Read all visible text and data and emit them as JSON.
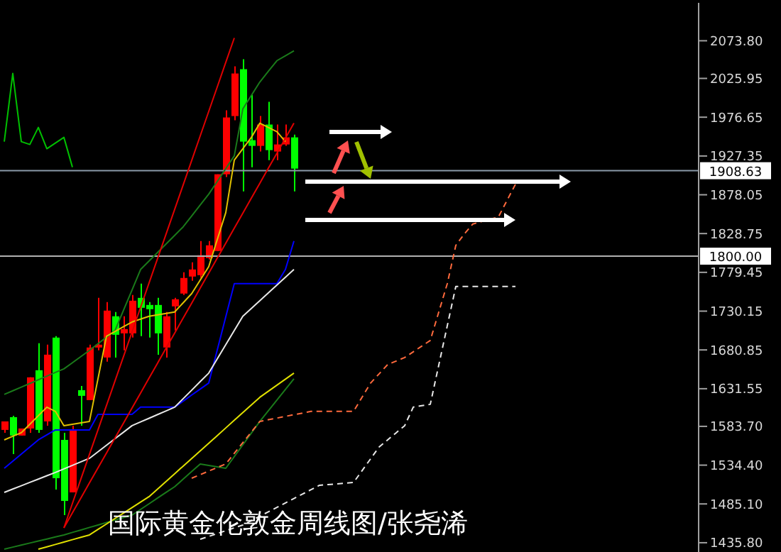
{
  "chart_data": {
    "type": "candlestick",
    "categories": [
      null,
      null,
      null,
      null,
      null,
      null,
      null,
      null,
      null,
      null,
      null,
      null,
      null,
      null,
      null,
      null,
      null,
      null,
      null,
      null,
      null,
      null,
      null,
      null,
      null,
      null,
      null,
      null,
      null,
      null,
      null,
      null,
      null,
      null,
      null,
      null,
      null,
      null,
      null,
      null,
      null,
      null,
      null,
      null,
      null,
      null,
      null,
      null,
      null,
      null,
      null,
      null,
      null,
      null,
      null,
      null,
      null,
      null,
      null,
      null,
      null,
      null,
      null,
      null,
      null,
      null,
      null,
      null,
      null,
      null,
      null,
      null,
      null,
      null,
      null,
      null,
      null,
      null,
      null,
      null,
      null,
      null
    ],
    "ohlc": [
      [
        1579.2,
        1590.0,
        1575.6,
        1590.0
      ],
      [
        1595.4,
        1597.2,
        1548.5,
        1572.0
      ],
      [
        1572.0,
        1581.0,
        1572.0,
        1581.0
      ],
      [
        1581.0,
        1646.0,
        1575.6,
        1646.0
      ],
      [
        1655.0,
        1689.3,
        1575.6,
        1579.2
      ],
      [
        1590.0,
        1687.5,
        1584.6,
        1674.8
      ],
      [
        1696.5,
        1698.3,
        1503.4,
        1517.8
      ],
      [
        1566.5,
        1575.6,
        1470.9,
        1488.9
      ],
      [
        1499.8,
        1584.6,
        1499.8,
        1579.2
      ],
      [
        1629.7,
        1635.1,
        1584.6,
        1622.5
      ],
      [
        1617.1,
        1687.5,
        1617.1,
        1683.9
      ],
      [
        1683.9,
        1747.0,
        1680.3,
        1687.5
      ],
      [
        1671.2,
        1741.6,
        1665.8,
        1730.8
      ],
      [
        1723.6,
        1729.0,
        1671.2,
        1700.1
      ],
      [
        1701.9,
        1723.6,
        1680.3,
        1707.3
      ],
      [
        1701.9,
        1750.7,
        1696.5,
        1743.4
      ],
      [
        1747.0,
        1765.1,
        1698.3,
        1734.4
      ],
      [
        1738.0,
        1741.6,
        1696.5,
        1732.6
      ],
      [
        1738.0,
        1747.0,
        1674.8,
        1701.9
      ],
      [
        1683.9,
        1729.0,
        1671.2,
        1723.6
      ],
      [
        1736.2,
        1747.0,
        1705.5,
        1745.2
      ],
      [
        1752.5,
        1779.5,
        1750.7,
        1772.3
      ],
      [
        1774.1,
        1792.2,
        1768.7,
        1783.1
      ],
      [
        1775.9,
        1819.2,
        1772.3,
        1801.2
      ],
      [
        1797.6,
        1819.2,
        1795.8,
        1813.8
      ],
      [
        1806.6,
        1904.1,
        1806.6,
        1904.1
      ],
      [
        1904.1,
        1985.3,
        1900.5,
        1976.3
      ],
      [
        1978.1,
        2041.3,
        1972.7,
        2032.2
      ],
      [
        2037.7,
        2050.3,
        1882.4,
        1945.6
      ],
      [
        1947.4,
        2005.2,
        1913.1,
        1940.2
      ],
      [
        1940.2,
        1978.1,
        1933.0,
        1967.3
      ],
      [
        1967.3,
        1996.1,
        1922.1,
        1934.8
      ],
      [
        1933.0,
        1967.3,
        1922.1,
        1942.0
      ],
      [
        1942.0,
        1967.3,
        1940.2,
        1951.0
      ],
      [
        1951.0,
        1954.6,
        1882.4,
        1911.3
      ],
      null,
      null,
      null,
      null,
      null,
      null,
      null,
      null,
      null,
      null,
      null,
      null,
      null,
      null,
      null,
      null,
      null,
      null,
      null,
      null,
      null,
      null,
      null,
      null,
      null,
      null,
      null,
      null,
      null,
      null,
      null,
      null,
      null,
      null,
      null,
      null,
      null,
      null,
      null,
      null,
      null,
      null,
      null,
      null,
      null,
      null,
      null
    ],
    "colors": [
      "#ff0000",
      "#00ff00",
      "#ff0000",
      "#ff0000",
      "#00ff00",
      "#ff0000",
      "#00ff00",
      "#00ff00",
      "#ff0000",
      "#00ff00",
      "#ff0000",
      "#ff0000",
      "#ff0000",
      "#00ff00",
      "#ff0000",
      "#ff0000",
      "#00ff00",
      "#00ff00",
      "#00ff00",
      "#ff0000",
      "#ff0000",
      "#ff0000",
      "#ff0000",
      "#ff0000",
      "#ff0000",
      "#ff0000",
      "#ff0000",
      "#ff0000",
      "#00ff00",
      "#00ff00",
      "#ff0000",
      "#00ff00",
      "#ff0000",
      "#ff0000",
      "#00ff00",
      null,
      null,
      null,
      null,
      null,
      null,
      null,
      null,
      null,
      null,
      null,
      null,
      null,
      null,
      null,
      null,
      null,
      null,
      null,
      null,
      null,
      null,
      null,
      null,
      null,
      null,
      null,
      null,
      null,
      null,
      null,
      null,
      null,
      null,
      null,
      null,
      null,
      null,
      null,
      null,
      null,
      null,
      null,
      null,
      null,
      null,
      null
    ],
    "series": [
      {
        "type": "line",
        "color": "#1a7a1a",
        "values": [
          1624.3,
          1628.9,
          1633.6,
          1638.2,
          1642.9,
          1647.5,
          1652.2,
          1656.8,
          1664.6,
          1672.5,
          1680.3,
          1688.7,
          1697.1,
          1705.5,
          1731.4,
          1757.2,
          1783.1,
          1793.9,
          1804.8,
          1815.6,
          1826.5,
          1837.3,
          1851.1,
          1865.0,
          1878.8,
          1895.0,
          1911.3,
          1927.5,
          1987.1,
          2004.3,
          2021.4,
          2035.0,
          2048.5,
          2054.8,
          2061.1,
          null,
          null,
          null,
          null,
          null,
          null,
          null,
          null,
          null,
          null,
          null,
          null,
          null,
          null,
          null,
          null,
          null,
          null,
          null,
          null,
          null,
          null,
          null,
          null,
          null,
          null,
          null,
          null,
          null,
          null,
          null,
          null,
          null,
          null,
          null,
          null,
          null,
          null,
          null,
          null,
          null,
          null,
          null,
          null,
          null,
          null,
          null
        ]
      },
      {
        "type": "line",
        "color": "#1a7a1a",
        "values": [
          1427.6,
          1430.2,
          1432.8,
          1435.4,
          1437.9,
          1440.5,
          1443.1,
          1445.7,
          1448.9,
          1452.0,
          1455.2,
          1458.3,
          1461.5,
          1464.6,
          1467.8,
          1470.9,
          1478.1,
          1485.3,
          1492.6,
          1499.8,
          1507.0,
          1516.6,
          1526.3,
          1535.9,
          1534.1,
          1532.2,
          1530.4,
          1545.3,
          1560.2,
          1575.1,
          1590.0,
          1603.6,
          1617.1,
          1630.7,
          1644.2,
          null,
          null,
          null,
          null,
          null,
          null,
          null,
          null,
          null,
          null,
          null,
          null,
          null,
          null,
          null,
          null,
          null,
          null,
          null,
          null,
          null,
          null,
          null,
          null,
          null,
          null,
          null,
          null,
          null,
          null,
          null,
          null,
          null,
          null,
          null,
          null,
          null,
          null,
          null,
          null,
          null,
          null,
          null,
          null,
          null,
          null,
          null
        ]
      },
      {
        "type": "line",
        "color": "#e0c000",
        "values": [
          1566.5,
          1571.1,
          1575.6,
          1586.4,
          1597.3,
          1608.1,
          1602.7,
          1584.6,
          1586.4,
          1588.2,
          1590.0,
          1644.2,
          1698.3,
          1704.3,
          1710.4,
          1716.4,
          1720.0,
          1723.6,
          1725.4,
          1727.2,
          1729.0,
          1740.8,
          1752.5,
          1769.7,
          1786.8,
          1821.1,
          1855.4,
          1922.1,
          1936.6,
          1951.0,
          1969.1,
          1963.7,
          1958.2,
          1945.6,
          null,
          null,
          null,
          null,
          null,
          null,
          null,
          null,
          null,
          null,
          null,
          null,
          null,
          null,
          null,
          null,
          null,
          null,
          null,
          null,
          null,
          null,
          null,
          null,
          null,
          null,
          null,
          null,
          null,
          null,
          null,
          null,
          null,
          null,
          null,
          null,
          null,
          null,
          null,
          null,
          null,
          null,
          null,
          null,
          null,
          null,
          null,
          null
        ]
      },
      {
        "type": "line",
        "color": "#0000ff",
        "values": [
          1530.4,
          1539.4,
          1548.5,
          1557.5,
          1566.5,
          1572.9,
          1579.2,
          1579.2,
          1579.2,
          1579.2,
          1579.2,
          1599.0,
          1599.0,
          1599.0,
          1599.0,
          1599.0,
          1608.1,
          1608.1,
          1608.1,
          1608.1,
          1608.1,
          1615.8,
          1623.5,
          1631.1,
          1638.8,
          1680.9,
          1723.0,
          1765.1,
          1765.1,
          1765.1,
          1765.1,
          1765.1,
          1765.1,
          1783.1,
          1819.2,
          null,
          null,
          null,
          null,
          null,
          null,
          null,
          null,
          null,
          null,
          null,
          null,
          null,
          null,
          null,
          null,
          null,
          null,
          null,
          null,
          null,
          null,
          null,
          null,
          null,
          null,
          null,
          null,
          null,
          null,
          null,
          null,
          null,
          null,
          null,
          null,
          null,
          null,
          null,
          null,
          null,
          null,
          null,
          null,
          null,
          null,
          null
        ]
      },
      {
        "type": "line",
        "color": "#e8e8e8",
        "values": [
          1499.8,
          1504.0,
          1508.2,
          1512.5,
          1516.7,
          1520.9,
          1525.1,
          1529.6,
          1534.1,
          1538.6,
          1543.1,
          1551.4,
          1559.7,
          1568.0,
          1576.3,
          1584.6,
          1589.3,
          1594.0,
          1598.7,
          1603.4,
          1608.1,
          1618.9,
          1629.7,
          1640.6,
          1651.4,
          1669.5,
          1687.5,
          1705.6,
          1723.6,
          1733.5,
          1743.4,
          1753.4,
          1763.3,
          1773.2,
          1783.1,
          null,
          null,
          null,
          null,
          null,
          null,
          null,
          null,
          null,
          null,
          null,
          null,
          null,
          null,
          null,
          null,
          null,
          null,
          null,
          null,
          null,
          null,
          null,
          null,
          null,
          null,
          null,
          null,
          null,
          null,
          null,
          null,
          null,
          null,
          null,
          null,
          null,
          null,
          null,
          null,
          null,
          null,
          null,
          null,
          null,
          null,
          null
        ]
      },
      {
        "type": "line",
        "color": "#e0e000",
        "values": [
          null,
          null,
          null,
          null,
          1427.6,
          1430.6,
          1433.6,
          1436.7,
          1439.7,
          1442.7,
          1445.7,
          1452.7,
          1459.6,
          1466.6,
          1473.5,
          1480.5,
          1487.4,
          1494.4,
          1504.1,
          1513.8,
          1523.5,
          1533.2,
          1542.9,
          1552.6,
          1562.3,
          1572.0,
          1581.7,
          1591.5,
          1601.2,
          1611.0,
          1620.7,
          1628.4,
          1636.0,
          1643.7,
          1651.4,
          null,
          null,
          null,
          null,
          null,
          null,
          null,
          null,
          null,
          null,
          null,
          null,
          null,
          null,
          null,
          null,
          null,
          null,
          null,
          null,
          null,
          null,
          null,
          null,
          null,
          null,
          null,
          null,
          null,
          null,
          null,
          null,
          null,
          null,
          null,
          null,
          null,
          null,
          null,
          null,
          null,
          null,
          null,
          null,
          null,
          null,
          null
        ]
      },
      {
        "type": "line",
        "color": "#e00000",
        "values": [
          null,
          null,
          null,
          null,
          null,
          null,
          null,
          1454.7,
          1485.8,
          1517.0,
          1548.1,
          1579.2,
          1610.4,
          1641.5,
          1672.6,
          1703.8,
          1734.9,
          1766.1,
          1797.2,
          1828.3,
          1859.5,
          1890.6,
          1921.7,
          1952.9,
          1984.0,
          2015.1,
          2046.3,
          2077.4,
          null,
          null,
          null,
          null,
          null,
          null,
          null,
          null,
          null,
          null,
          null,
          null,
          null,
          null,
          null,
          null,
          null,
          null,
          null,
          null,
          null,
          null,
          null,
          null,
          null,
          null,
          null,
          null,
          null,
          null,
          null,
          null,
          null,
          null,
          null,
          null,
          null,
          null,
          null,
          null,
          null,
          null,
          null,
          null,
          null,
          null,
          null,
          null,
          null,
          null,
          null,
          null,
          null,
          null
        ]
      },
      {
        "type": "line",
        "color": "#e00000",
        "values": [
          null,
          null,
          null,
          null,
          null,
          null,
          null,
          1454.7,
          1473.8,
          1492.8,
          1511.9,
          1530.9,
          1549.9,
          1569.0,
          1588.0,
          1607.1,
          1626.1,
          1645.2,
          1664.2,
          1683.3,
          1702.3,
          1721.4,
          1740.4,
          1759.4,
          1778.5,
          1797.5,
          1816.6,
          1835.6,
          1854.7,
          1873.7,
          1892.8,
          1911.8,
          1930.9,
          1949.9,
          1969.1,
          null,
          null,
          null,
          null,
          null,
          null,
          null,
          null,
          null,
          null,
          null,
          null,
          null,
          null,
          null,
          null,
          null,
          null,
          null,
          null,
          null,
          null,
          null,
          null,
          null,
          null,
          null,
          null,
          null,
          null,
          null,
          null,
          null,
          null,
          null,
          null,
          null,
          null,
          null,
          null,
          null,
          null,
          null,
          null,
          null,
          null,
          null
        ]
      },
      {
        "type": "line",
        "color": "#00c000",
        "values": [
          1945.6,
          2032.2,
          1945.6,
          1942.0,
          1963.6,
          1936.6,
          1943.8,
          1951.0,
          1913.1,
          null,
          null,
          null,
          null,
          null,
          null,
          null,
          null,
          null,
          null,
          null,
          null,
          null,
          null,
          null,
          null,
          null,
          null,
          null,
          null,
          null,
          null,
          null,
          null,
          null,
          null,
          null,
          null,
          null,
          null,
          null,
          null,
          null,
          null,
          null,
          null,
          null,
          null,
          null,
          null,
          null,
          null,
          null,
          null,
          null,
          null,
          null,
          null,
          null,
          null,
          null,
          null,
          null,
          null,
          null,
          null,
          null,
          null,
          null,
          null,
          null,
          null,
          null,
          null,
          null,
          null,
          null,
          null,
          null,
          null,
          null,
          null,
          null
        ]
      },
      {
        "type": "line",
        "color": "#ff6a3d",
        "line_style": "dashed",
        "values": [
          null,
          null,
          null,
          null,
          null,
          null,
          null,
          null,
          null,
          null,
          null,
          null,
          null,
          null,
          null,
          null,
          null,
          null,
          null,
          null,
          null,
          null,
          1517.8,
          1522.3,
          1526.9,
          1531.4,
          1535.9,
          1549.4,
          1563.0,
          1576.5,
          1590.0,
          1592.1,
          1594.2,
          1596.4,
          1598.5,
          1600.6,
          1602.7,
          1602.7,
          1602.7,
          1602.7,
          1602.7,
          1602.7,
          1620.8,
          1638.8,
          1650.5,
          1662.2,
          1666.7,
          1671.2,
          1678.4,
          1685.7,
          1692.9,
          1729.0,
          1765.1,
          1813.8,
          1828.3,
          1840.9,
          1843.9,
          1846.9,
          1849.9,
          1870.7,
          1891.4,
          null,
          null,
          null,
          null,
          null,
          null,
          null,
          null,
          null,
          null,
          null,
          null,
          null,
          null,
          null,
          null,
          null,
          null,
          null,
          null,
          null
        ]
      },
      {
        "type": "line",
        "color": "#e8e8e8",
        "line_style": "dashed",
        "values": [
          null,
          null,
          null,
          null,
          null,
          null,
          null,
          null,
          null,
          null,
          null,
          null,
          null,
          null,
          null,
          null,
          null,
          null,
          null,
          null,
          null,
          null,
          null,
          1440.2,
          1443.8,
          1447.4,
          1451.1,
          1454.7,
          1458.3,
          1463.9,
          1469.5,
          1475.1,
          1480.7,
          1486.4,
          1492.0,
          1497.6,
          1503.2,
          1508.8,
          1509.7,
          1510.6,
          1511.5,
          1512.4,
          1527.4,
          1542.5,
          1557.5,
          1566.5,
          1575.6,
          1584.6,
          1608.1,
          1609.9,
          1611.7,
          1661.6,
          1711.6,
          1761.5,
          1761.5,
          1761.5,
          1761.5,
          1761.5,
          1761.5,
          1761.5,
          1761.5,
          null,
          null,
          null,
          null,
          null,
          null,
          null,
          null,
          null,
          null,
          null,
          null,
          null,
          null,
          null,
          null,
          null,
          null,
          null,
          null,
          null
        ]
      }
    ],
    "ref_lines": [
      {
        "axis": "y",
        "value": 1908.63,
        "label": "1908.63",
        "color": "#8a9aa8"
      },
      {
        "axis": "y",
        "value": 1800.0,
        "label": "1800.00",
        "color": "#b0b0b0"
      }
    ],
    "annotations": [
      "国际黄金伦敦金周线图/张尧浠"
    ],
    "ylim": [
      1424,
      2122
    ],
    "yticks": [
      {
        "value": 2073.8,
        "label": "2073.80"
      },
      {
        "value": 2025.95,
        "label": "2025.95"
      },
      {
        "value": 1976.65,
        "label": "1976.65"
      },
      {
        "value": 1927.35,
        "label": "1927.35"
      },
      {
        "value": 1878.05,
        "label": "1878.05"
      },
      {
        "value": 1828.75,
        "label": "1828.75"
      },
      {
        "value": 1779.45,
        "label": "1779.45"
      },
      {
        "value": 1730.15,
        "label": "1730.15"
      },
      {
        "value": 1680.85,
        "label": "1680.85"
      },
      {
        "value": 1631.55,
        "label": "1631.55"
      },
      {
        "value": 1583.7,
        "label": "1583.70"
      },
      {
        "value": 1534.4,
        "label": "1534.40"
      },
      {
        "value": 1485.1,
        "label": "1485.10"
      },
      {
        "value": 1435.8,
        "label": "1435.80"
      }
    ],
    "tick_labels": "y",
    "grid": false,
    "legend": false
  }
}
